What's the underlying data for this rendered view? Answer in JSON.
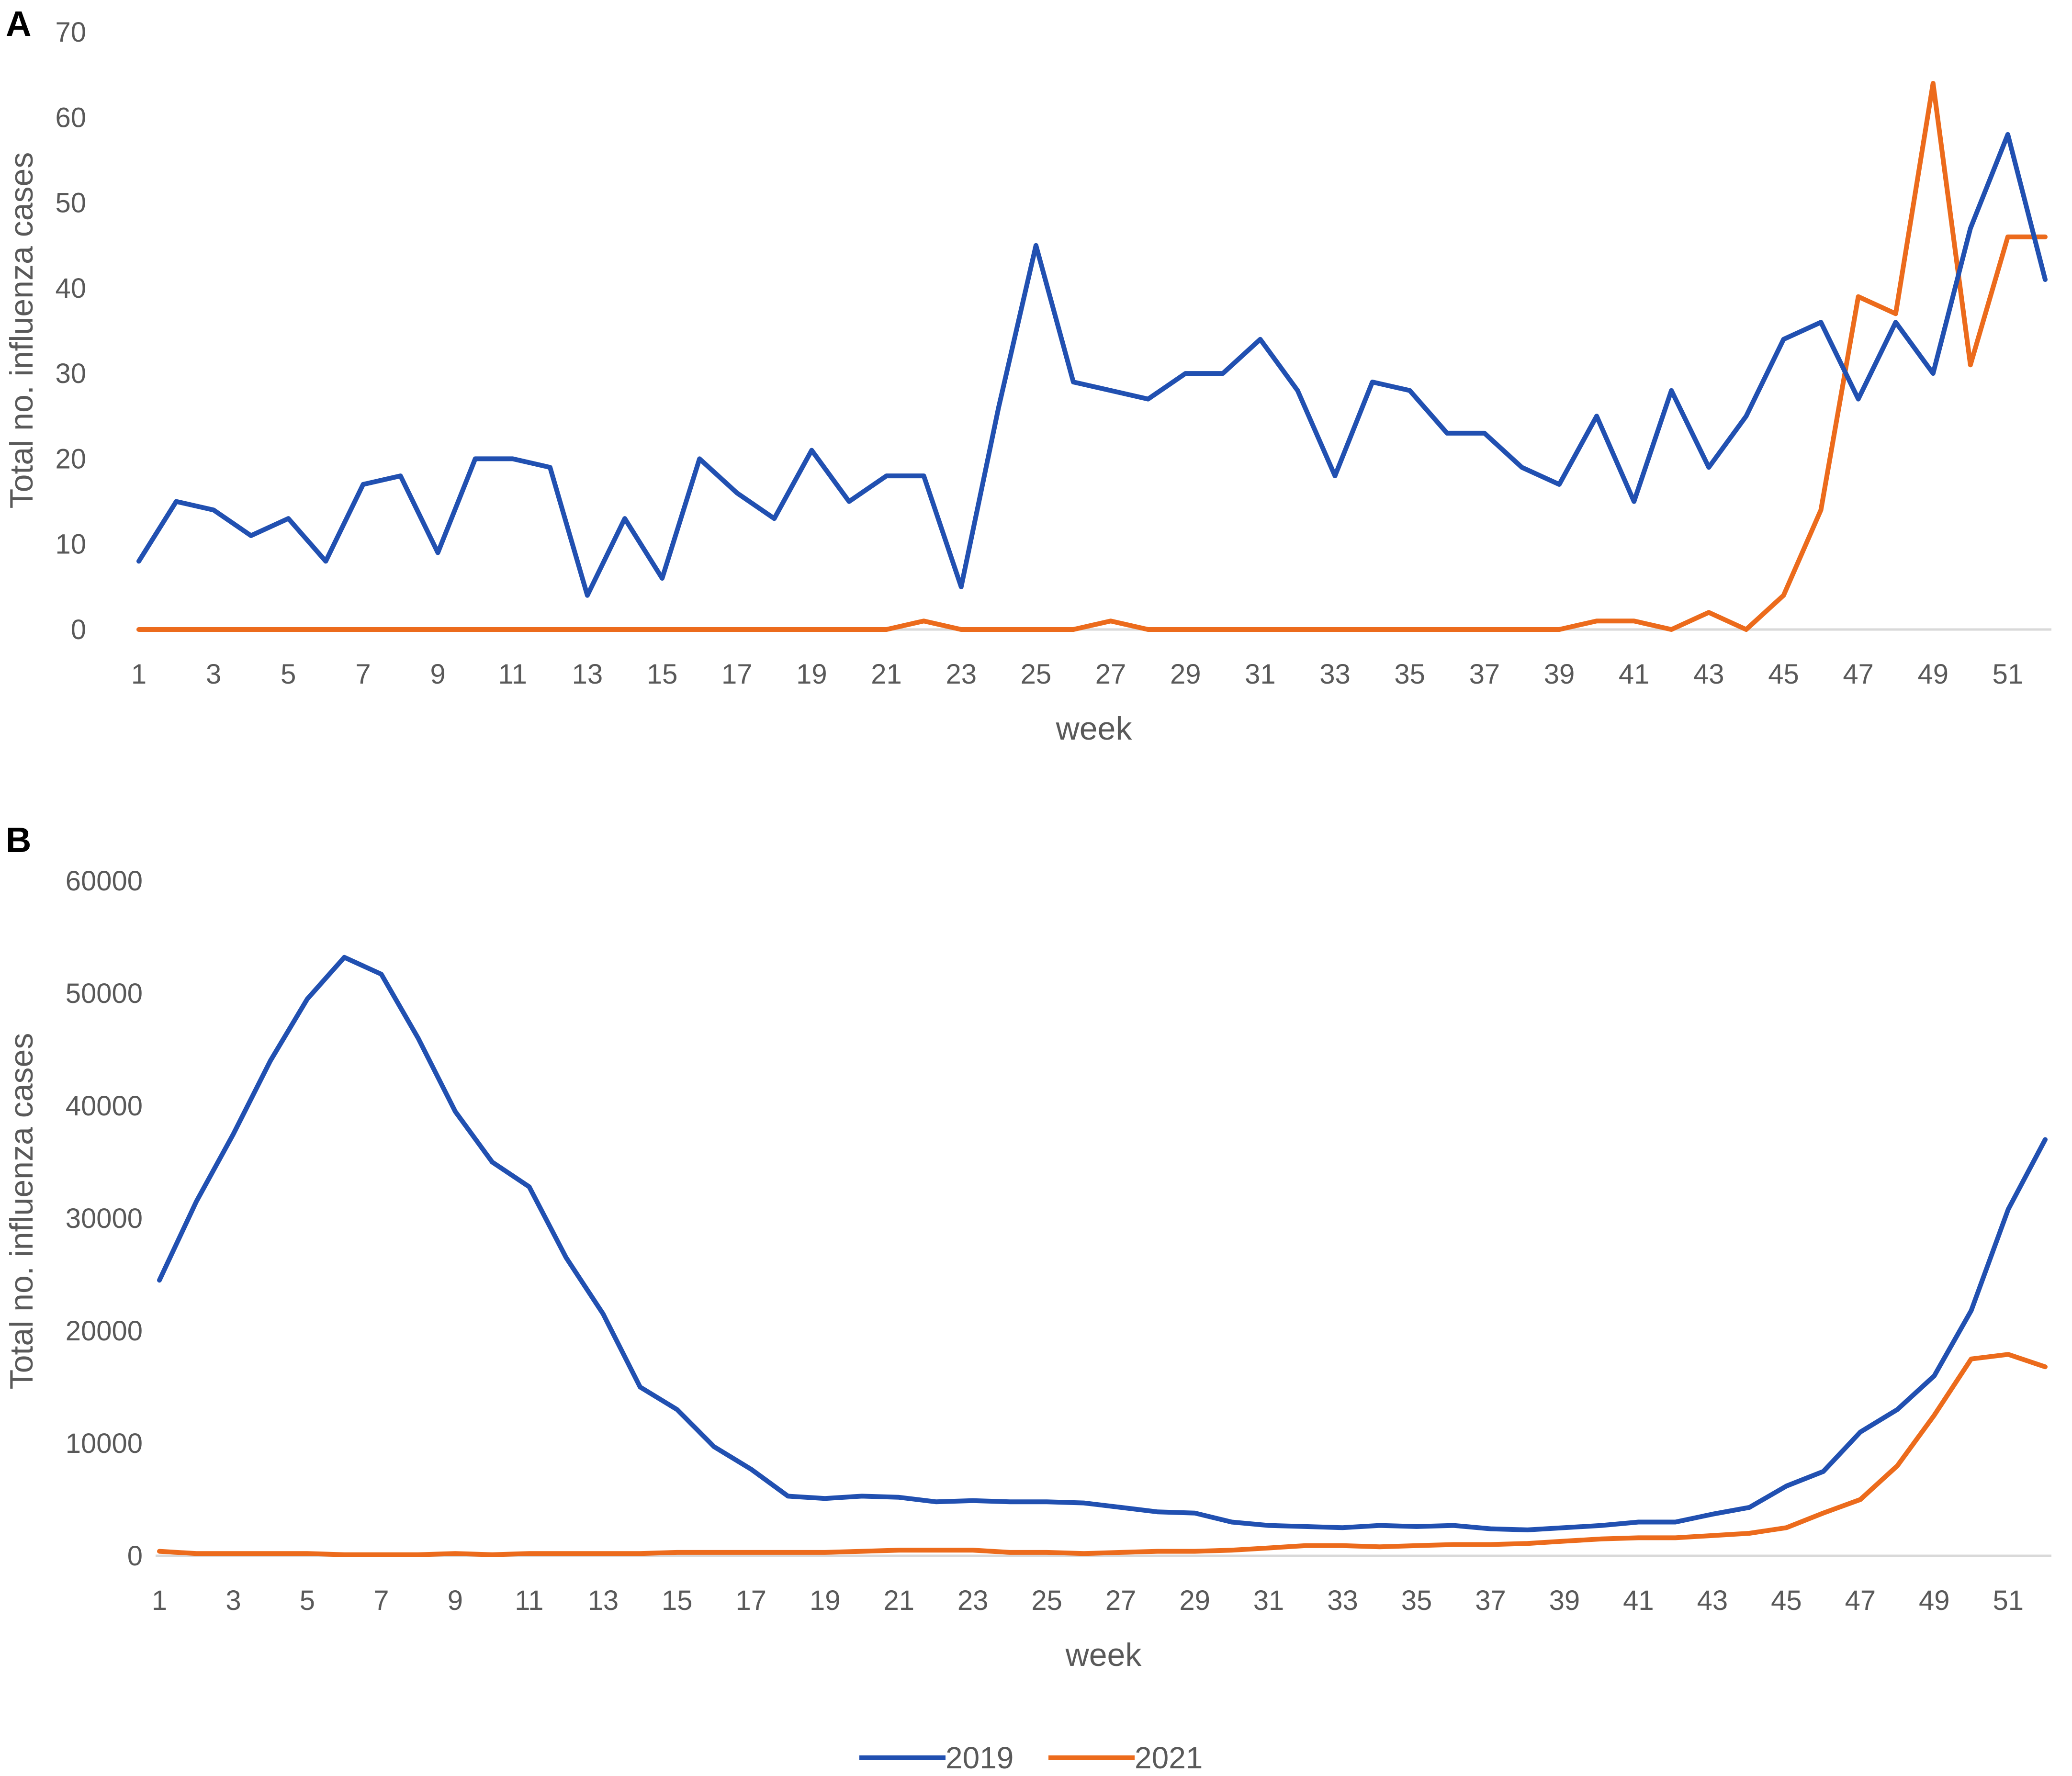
{
  "colors": {
    "series_2019": "#2150b1",
    "series_2021": "#ec6b1c",
    "axis": "#d9d9d9",
    "text": "#595959"
  },
  "legend": {
    "placement": "bottom-center"
  },
  "chart_data": [
    {
      "panel_label": "A",
      "type": "line",
      "xlabel": "week",
      "ylabel": "Total no. influenza cases",
      "ylim": [
        0,
        70
      ],
      "yticks": [
        0,
        10,
        20,
        30,
        40,
        50,
        60,
        70
      ],
      "xticks": [
        1,
        3,
        5,
        7,
        9,
        11,
        13,
        15,
        17,
        19,
        21,
        23,
        25,
        27,
        29,
        31,
        33,
        35,
        37,
        39,
        41,
        43,
        45,
        47,
        49,
        51
      ],
      "grid": false,
      "series": [
        {
          "name": "2019",
          "values": [
            8,
            15,
            14,
            11,
            13,
            8,
            17,
            18,
            9,
            20,
            20,
            19,
            4,
            13,
            6,
            20,
            16,
            13,
            21,
            15,
            18,
            18,
            5,
            26,
            45,
            29,
            28,
            27,
            30,
            30,
            34,
            28,
            18,
            29,
            28,
            23,
            23,
            19,
            17,
            25,
            15,
            28,
            19,
            25,
            34,
            36,
            27,
            36,
            30,
            47,
            58,
            41
          ]
        },
        {
          "name": "2021",
          "values": [
            0,
            0,
            0,
            0,
            0,
            0,
            0,
            0,
            0,
            0,
            0,
            0,
            0,
            0,
            0,
            0,
            0,
            0,
            0,
            0,
            0,
            1,
            0,
            0,
            0,
            0,
            1,
            0,
            0,
            0,
            0,
            0,
            0,
            0,
            0,
            0,
            0,
            0,
            0,
            1,
            1,
            0,
            2,
            0,
            4,
            14,
            39,
            37,
            64,
            31,
            46,
            46
          ]
        }
      ]
    },
    {
      "panel_label": "B",
      "type": "line",
      "xlabel": "week",
      "ylabel": "Total no. influenza cases",
      "ylim": [
        0,
        60000
      ],
      "yticks": [
        0,
        10000,
        20000,
        30000,
        40000,
        50000,
        60000
      ],
      "xticks": [
        1,
        3,
        5,
        7,
        9,
        11,
        13,
        15,
        17,
        19,
        21,
        23,
        25,
        27,
        29,
        31,
        33,
        35,
        37,
        39,
        41,
        43,
        45,
        47,
        49,
        51
      ],
      "grid": false,
      "series": [
        {
          "name": "2019",
          "values": [
            24500,
            31500,
            37500,
            44000,
            49500,
            53200,
            51700,
            46000,
            39500,
            35000,
            32800,
            26500,
            21500,
            15000,
            13000,
            9700,
            7700,
            5300,
            5100,
            5300,
            5200,
            4800,
            4900,
            4800,
            4800,
            4700,
            4300,
            3900,
            3800,
            3000,
            2700,
            2600,
            2500,
            2700,
            2600,
            2700,
            2400,
            2300,
            2500,
            2700,
            3000,
            3000,
            3700,
            4300,
            6200,
            7500,
            11000,
            13000,
            16000,
            21800,
            30800,
            37000
          ]
        },
        {
          "name": "2021",
          "values": [
            400,
            200,
            200,
            200,
            200,
            100,
            100,
            100,
            200,
            100,
            200,
            200,
            200,
            200,
            300,
            300,
            300,
            300,
            300,
            400,
            500,
            500,
            500,
            300,
            300,
            200,
            300,
            400,
            400,
            500,
            700,
            900,
            900,
            800,
            900,
            1000,
            1000,
            1100,
            1300,
            1500,
            1600,
            1600,
            1800,
            2000,
            2500,
            3800,
            5000,
            8000,
            12500,
            17500,
            17900,
            16800
          ]
        }
      ]
    }
  ]
}
